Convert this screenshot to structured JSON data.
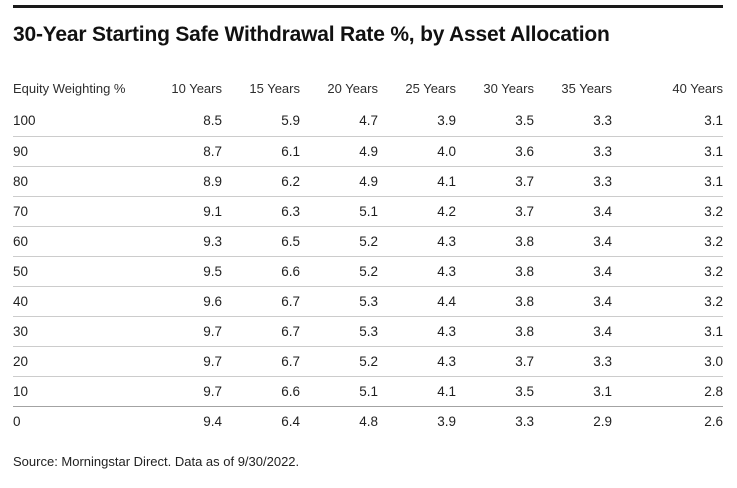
{
  "title": "30-Year Starting Safe Withdrawal Rate %, by Asset Allocation",
  "source": "Source: Morningstar Direct. Data as of 9/30/2022.",
  "colors": {
    "top_rule": "#1a1a1a",
    "row_separator": "#cccccc",
    "last_row_separator": "#a3a3a3",
    "text": "#1a1a1a",
    "background": "#ffffff"
  },
  "table": {
    "columns": [
      "Equity Weighting %",
      "10 Years",
      "15 Years",
      "20 Years",
      "25 Years",
      "30 Years",
      "35 Years",
      "40 Years"
    ],
    "rows": [
      {
        "equity": "100",
        "values": [
          "8.5",
          "5.9",
          "4.7",
          "3.9",
          "3.5",
          "3.3",
          "3.1"
        ]
      },
      {
        "equity": "90",
        "values": [
          "8.7",
          "6.1",
          "4.9",
          "4.0",
          "3.6",
          "3.3",
          "3.1"
        ]
      },
      {
        "equity": "80",
        "values": [
          "8.9",
          "6.2",
          "4.9",
          "4.1",
          "3.7",
          "3.3",
          "3.1"
        ]
      },
      {
        "equity": "70",
        "values": [
          "9.1",
          "6.3",
          "5.1",
          "4.2",
          "3.7",
          "3.4",
          "3.2"
        ]
      },
      {
        "equity": "60",
        "values": [
          "9.3",
          "6.5",
          "5.2",
          "4.3",
          "3.8",
          "3.4",
          "3.2"
        ]
      },
      {
        "equity": "50",
        "values": [
          "9.5",
          "6.6",
          "5.2",
          "4.3",
          "3.8",
          "3.4",
          "3.2"
        ]
      },
      {
        "equity": "40",
        "values": [
          "9.6",
          "6.7",
          "5.3",
          "4.4",
          "3.8",
          "3.4",
          "3.2"
        ]
      },
      {
        "equity": "30",
        "values": [
          "9.7",
          "6.7",
          "5.3",
          "4.3",
          "3.8",
          "3.4",
          "3.1"
        ]
      },
      {
        "equity": "20",
        "values": [
          "9.7",
          "6.7",
          "5.2",
          "4.3",
          "3.7",
          "3.3",
          "3.0"
        ]
      },
      {
        "equity": "10",
        "values": [
          "9.7",
          "6.6",
          "5.1",
          "4.1",
          "3.5",
          "3.1",
          "2.8"
        ]
      },
      {
        "equity": "0",
        "values": [
          "9.4",
          "6.4",
          "4.8",
          "3.9",
          "3.3",
          "2.9",
          "2.6"
        ]
      }
    ]
  },
  "chart_data": {
    "type": "table",
    "title": "30-Year Starting Safe Withdrawal Rate %, by Asset Allocation",
    "row_label": "Equity Weighting %",
    "categories": [
      100,
      90,
      80,
      70,
      60,
      50,
      40,
      30,
      20,
      10,
      0
    ],
    "series": [
      {
        "name": "10 Years",
        "values": [
          8.5,
          8.7,
          8.9,
          9.1,
          9.3,
          9.5,
          9.6,
          9.7,
          9.7,
          9.7,
          9.4
        ]
      },
      {
        "name": "15 Years",
        "values": [
          5.9,
          6.1,
          6.2,
          6.3,
          6.5,
          6.6,
          6.7,
          6.7,
          6.7,
          6.6,
          6.4
        ]
      },
      {
        "name": "20 Years",
        "values": [
          4.7,
          4.9,
          4.9,
          5.1,
          5.2,
          5.2,
          5.3,
          5.3,
          5.2,
          5.1,
          4.8
        ]
      },
      {
        "name": "25 Years",
        "values": [
          3.9,
          4.0,
          4.1,
          4.2,
          4.3,
          4.3,
          4.4,
          4.3,
          4.3,
          4.1,
          3.9
        ]
      },
      {
        "name": "30 Years",
        "values": [
          3.5,
          3.6,
          3.7,
          3.7,
          3.8,
          3.8,
          3.8,
          3.8,
          3.7,
          3.5,
          3.3
        ]
      },
      {
        "name": "35 Years",
        "values": [
          3.3,
          3.3,
          3.3,
          3.4,
          3.4,
          3.4,
          3.4,
          3.4,
          3.3,
          3.1,
          2.9
        ]
      },
      {
        "name": "40 Years",
        "values": [
          3.1,
          3.1,
          3.1,
          3.2,
          3.2,
          3.2,
          3.2,
          3.1,
          3.0,
          2.8,
          2.6
        ]
      }
    ],
    "source": "Source: Morningstar Direct. Data as of 9/30/2022.",
    "grid": "horizontal row separators only",
    "legend_position": "none"
  }
}
